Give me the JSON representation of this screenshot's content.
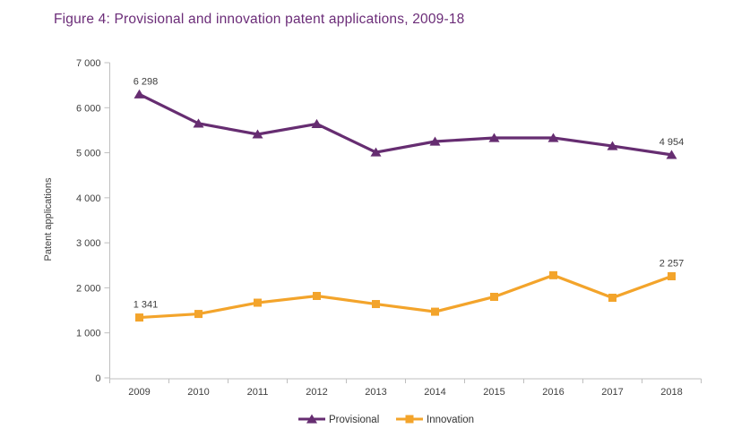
{
  "chart_data": {
    "type": "line",
    "title": "Figure 4: Provisional and innovation patent applications, 2009-18",
    "xlabel": "",
    "ylabel": "Patent applications",
    "categories": [
      "2009",
      "2010",
      "2011",
      "2012",
      "2013",
      "2014",
      "2015",
      "2016",
      "2017",
      "2018"
    ],
    "series": [
      {
        "name": "Provisional",
        "color": "#662D71",
        "marker": "triangle",
        "values": [
          6298,
          5650,
          5410,
          5640,
          5010,
          5250,
          5330,
          5330,
          5150,
          4954
        ],
        "end_labels": [
          "6 298",
          "4 954"
        ]
      },
      {
        "name": "Innovation",
        "color": "#F3A42B",
        "marker": "square",
        "values": [
          1341,
          1420,
          1670,
          1820,
          1640,
          1470,
          1800,
          2280,
          1780,
          2257
        ],
        "end_labels": [
          "1 341",
          "2 257"
        ]
      }
    ],
    "ylim": [
      0,
      7000
    ],
    "ytick_step": 1000,
    "ytick_labels": [
      "0",
      "1 000",
      "2 000",
      "3 000",
      "4 000",
      "5 000",
      "6 000",
      "7 000"
    ],
    "grid": false,
    "legend_position": "bottom",
    "axis_color": "#BFBFBF",
    "text_color": "#404040",
    "title_color": "#6B2C78"
  }
}
